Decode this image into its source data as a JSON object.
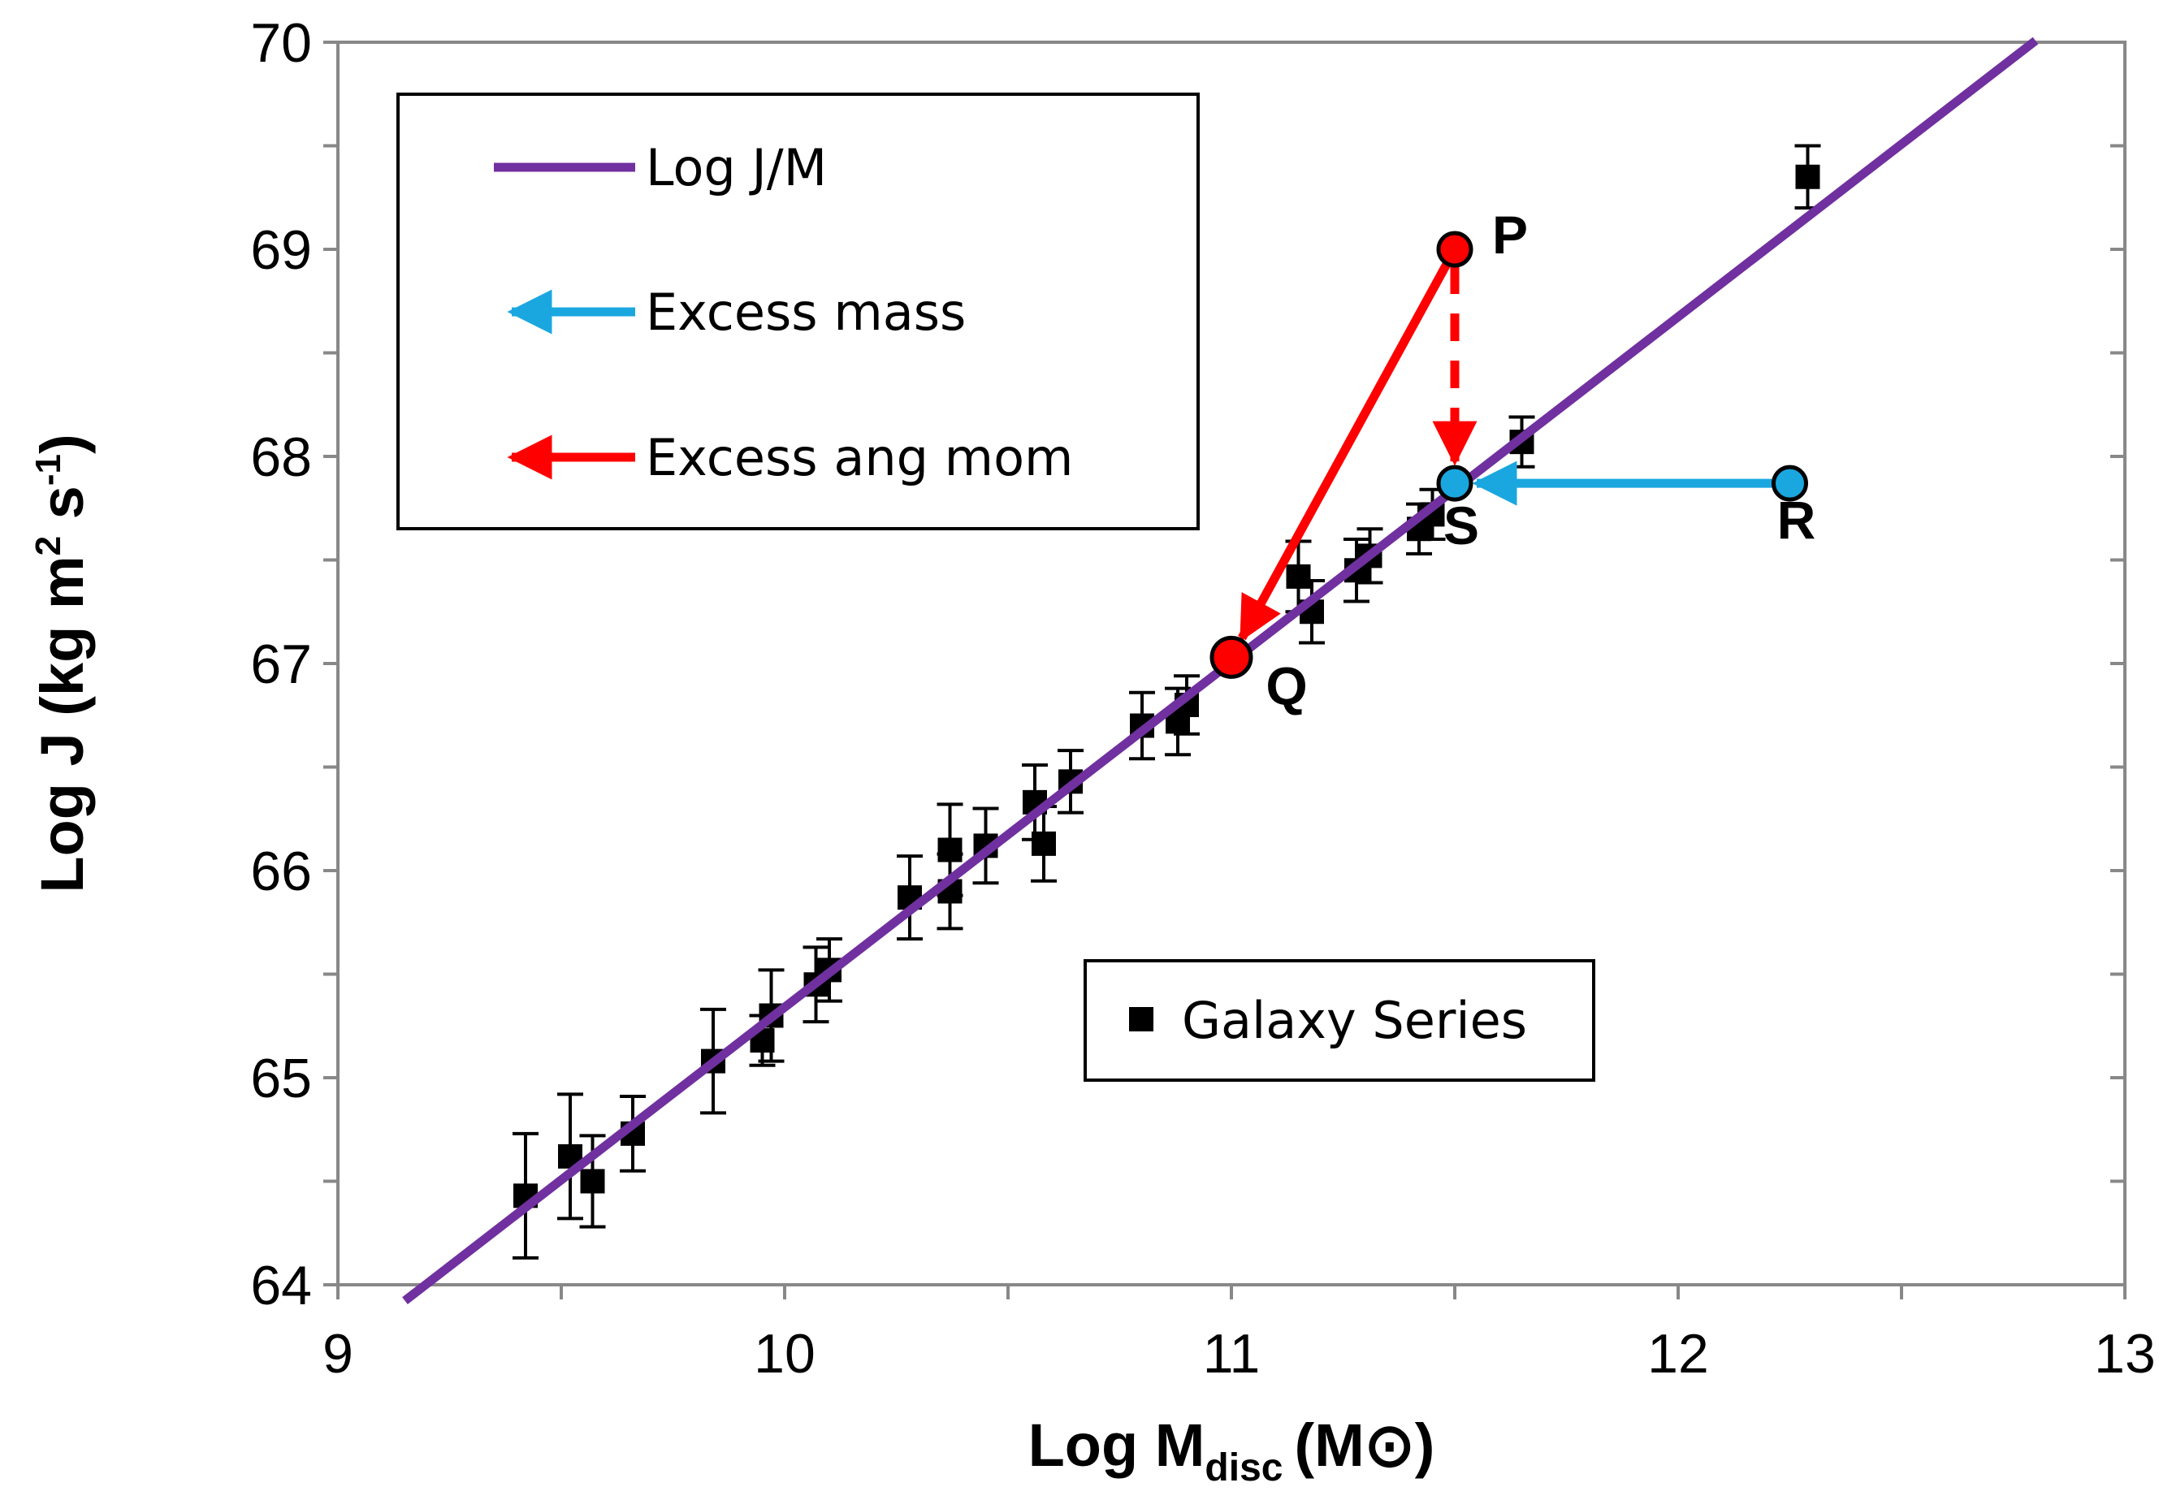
{
  "chart_data": {
    "type": "scatter",
    "xlabel": {
      "main": "Log M",
      "sub": "disc",
      "unit": "(M⊙)"
    },
    "ylabel": {
      "main": "Log J (kg m",
      "sup1": "2",
      "mid": " s",
      "sup2": "-1",
      "end": ")"
    },
    "xlim": [
      9,
      13
    ],
    "ylim": [
      64,
      70
    ],
    "xticks": [
      "9",
      "10",
      "11",
      "12",
      "13"
    ],
    "yticks": [
      "64",
      "65",
      "66",
      "67",
      "68",
      "69",
      "70"
    ],
    "grid": false,
    "colors": {
      "line": "#7030a0",
      "excess_mass": "#1aa7e0",
      "excess_ang_mom": "#ff0000",
      "markers": "#000000"
    },
    "legend_main": {
      "placement": "top-left",
      "entries": [
        "Log J/M",
        "Excess mass",
        "Excess ang mom"
      ]
    },
    "legend_series": {
      "placement": "bottom-right",
      "label": "Galaxy Series"
    },
    "fit_line": {
      "name": "Log J/M",
      "slope": 1.667,
      "intercept": 48.67,
      "x_range": [
        9.15,
        12.8
      ]
    },
    "galaxy_series": [
      {
        "x": 9.42,
        "y": 64.43,
        "err": 0.3
      },
      {
        "x": 9.52,
        "y": 64.62,
        "err": 0.3
      },
      {
        "x": 9.57,
        "y": 64.5,
        "err": 0.22
      },
      {
        "x": 9.66,
        "y": 64.73,
        "err": 0.18
      },
      {
        "x": 9.84,
        "y": 65.08,
        "err": 0.25
      },
      {
        "x": 9.95,
        "y": 65.18,
        "err": 0.12
      },
      {
        "x": 9.97,
        "y": 65.3,
        "err": 0.22
      },
      {
        "x": 10.07,
        "y": 65.45,
        "err": 0.18
      },
      {
        "x": 10.1,
        "y": 65.52,
        "err": 0.15
      },
      {
        "x": 10.28,
        "y": 65.87,
        "err": 0.2
      },
      {
        "x": 10.37,
        "y": 65.9,
        "err": 0.18
      },
      {
        "x": 10.37,
        "y": 66.1,
        "err": 0.22
      },
      {
        "x": 10.45,
        "y": 66.12,
        "err": 0.18
      },
      {
        "x": 10.56,
        "y": 66.33,
        "err": 0.18
      },
      {
        "x": 10.58,
        "y": 66.13,
        "err": 0.18
      },
      {
        "x": 10.64,
        "y": 66.43,
        "err": 0.15
      },
      {
        "x": 10.8,
        "y": 66.7,
        "err": 0.16
      },
      {
        "x": 10.88,
        "y": 66.72,
        "err": 0.16
      },
      {
        "x": 10.9,
        "y": 66.8,
        "err": 0.14
      },
      {
        "x": 11.15,
        "y": 67.42,
        "err": 0.17
      },
      {
        "x": 11.18,
        "y": 67.25,
        "err": 0.15
      },
      {
        "x": 11.28,
        "y": 67.45,
        "err": 0.15
      },
      {
        "x": 11.31,
        "y": 67.52,
        "err": 0.13
      },
      {
        "x": 11.42,
        "y": 67.65,
        "err": 0.12
      },
      {
        "x": 11.45,
        "y": 67.72,
        "err": 0.12
      },
      {
        "x": 11.65,
        "y": 68.07,
        "err": 0.12
      },
      {
        "x": 12.29,
        "y": 69.35,
        "err": 0.15
      }
    ],
    "points": [
      {
        "name": "P",
        "x": 11.5,
        "y": 69.0,
        "color": "#ff0000"
      },
      {
        "name": "Q",
        "x": 11.0,
        "y": 67.03,
        "color": "#ff0000"
      },
      {
        "name": "R",
        "x": 12.25,
        "y": 67.87,
        "color": "#1aa7e0"
      },
      {
        "name": "S",
        "x": 11.5,
        "y": 67.87,
        "color": "#1aa7e0"
      }
    ],
    "arrows": [
      {
        "from": "P",
        "to": "Q",
        "type": "Excess ang mom",
        "style": "solid"
      },
      {
        "from": "P",
        "to": "S",
        "type": "Excess ang mom",
        "style": "dashed"
      },
      {
        "from": "R",
        "to": "S",
        "type": "Excess mass",
        "style": "solid"
      }
    ]
  }
}
